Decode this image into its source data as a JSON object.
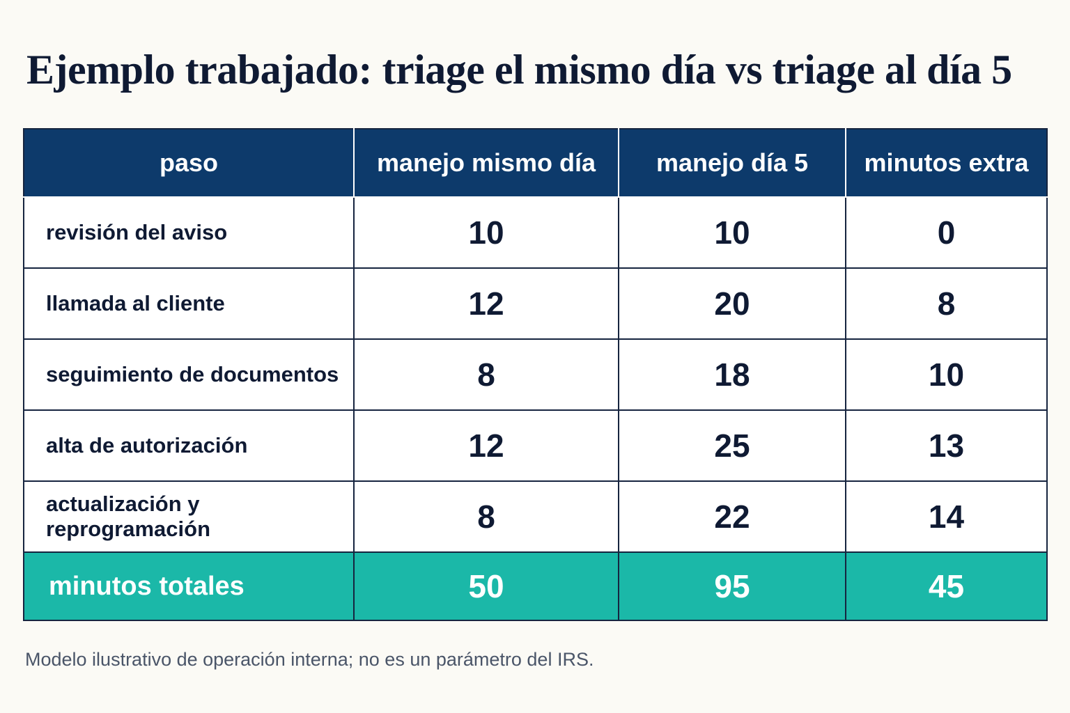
{
  "title": "Ejemplo trabajado: triage el mismo día vs triage al día 5",
  "table": {
    "header": [
      "paso",
      "manejo mismo día",
      "manejo día 5",
      "minutos extra"
    ],
    "rows": [
      [
        "revisión del aviso",
        10,
        10,
        0
      ],
      [
        "llamada al cliente",
        12,
        20,
        8
      ],
      [
        "seguimiento de documentos",
        8,
        18,
        10
      ],
      [
        "alta de autorización",
        12,
        25,
        13
      ],
      [
        "actualización y reprogramación",
        8,
        22,
        14
      ]
    ],
    "total": [
      "minutos totales",
      50,
      95,
      45
    ]
  },
  "footnote": "Modelo ilustrativo de operación interna; no es un parámetro del IRS."
}
